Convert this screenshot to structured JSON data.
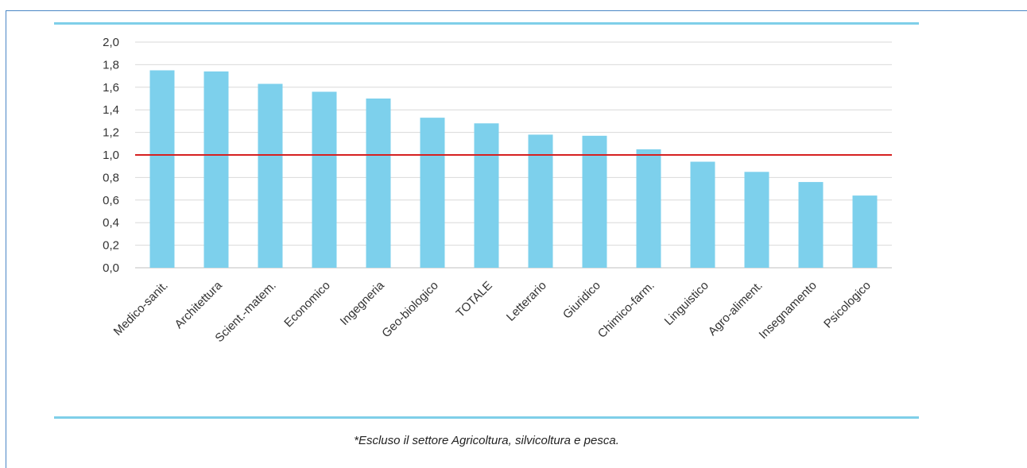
{
  "chart_data": {
    "type": "bar",
    "categories": [
      "Medico-sanit.",
      "Architettura",
      "Scient.-matem.",
      "Economico",
      "Ingegneria",
      "Geo-biologico",
      "TOTALE",
      "Letterario",
      "Giuridico",
      "Chimico-farm.",
      "Linguistico",
      "Agro-aliment.",
      "Insegnamento",
      "Psicologico"
    ],
    "values": [
      1.75,
      1.74,
      1.63,
      1.56,
      1.5,
      1.33,
      1.28,
      1.18,
      1.17,
      1.05,
      0.94,
      0.85,
      0.76,
      0.64
    ],
    "yticks": [
      "0,0",
      "0,2",
      "0,4",
      "0,6",
      "0,8",
      "1,0",
      "1,2",
      "1,4",
      "1,6",
      "1,8",
      "2,0"
    ],
    "ylim": [
      0,
      2
    ],
    "reference_line": 1.0,
    "grid": true,
    "colors": {
      "bar": "#7dd0ec",
      "reference_line": "#d62020",
      "grid": "#d9d9d9",
      "rule": "#7fcfe9"
    }
  },
  "footnote": "*Escluso il settore Agricoltura, silvicoltura e pesca."
}
